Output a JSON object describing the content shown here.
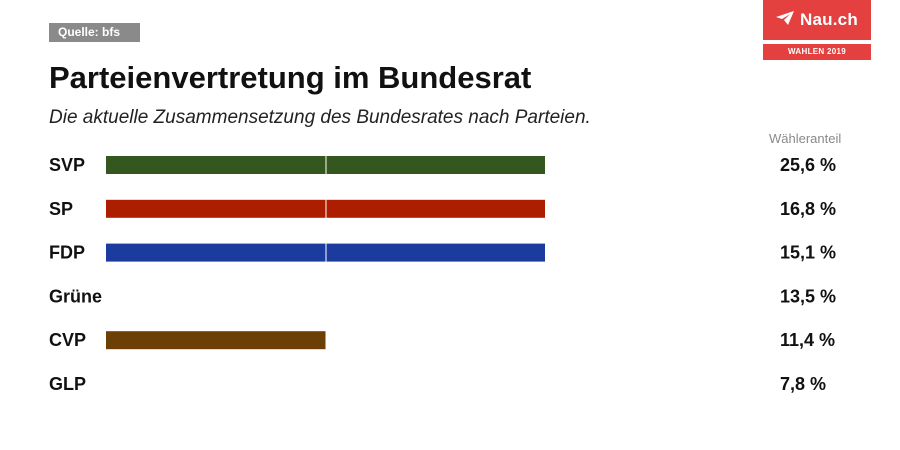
{
  "source": "Quelle: bfs",
  "logo": {
    "name": "Nau.ch",
    "tag": "WAHLEN 2019",
    "icon": "paper-plane-icon"
  },
  "title": "Parteienvertretung im Bundesrat",
  "subtitle": "Die aktuelle Zusammensetzung des Bundesrates nach Parteien.",
  "colors": {
    "accent": "#e3403f",
    "badge": "#8a8a8a"
  },
  "chart_data": {
    "type": "bar",
    "orientation": "horizontal",
    "value_header": "Wähleranteil",
    "unit": "seats",
    "max_seats": 2,
    "categories": [
      "SVP",
      "SP",
      "FDP",
      "Grüne",
      "CVP",
      "GLP"
    ],
    "values": [
      2,
      2,
      2,
      0,
      1,
      0
    ],
    "shares": [
      "25,6 %",
      "16,8 %",
      "15,1 %",
      "13,5 %",
      "11,4 %",
      "7,8 %"
    ],
    "colors": [
      "#33571f",
      "#ad1e00",
      "#1b3b9e",
      "#4c8a24",
      "#6b3f05",
      "#8db640"
    ]
  }
}
